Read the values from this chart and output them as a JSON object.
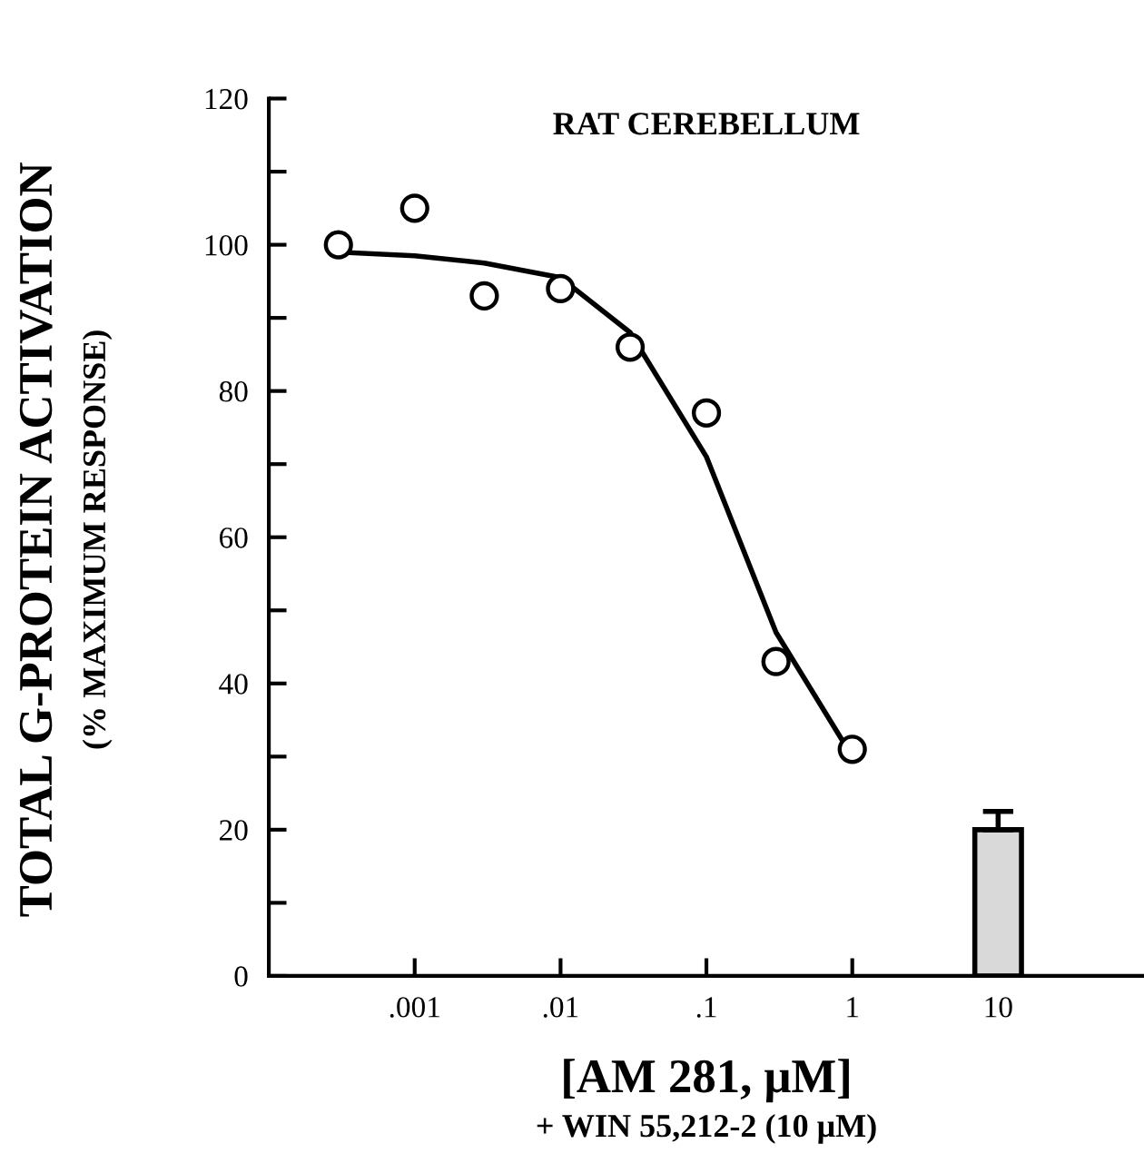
{
  "chart_data": {
    "type": "scatter",
    "title": "RAT CEREBELLUM",
    "xlabel": "[AM 281, μM]",
    "ylabel": "TOTAL G-PROTEIN ACTIVATION",
    "annotations": [
      "(% MAXIMUM RESPONSE)",
      "+ WIN 55,212-2 (10 μM)"
    ],
    "log": "x",
    "series": [
      {
        "color": "#000000",
        "marker": "circle",
        "x": [
          0.0003,
          0.001,
          0.003,
          0.01,
          0.03,
          0.1,
          0.3,
          1
        ],
        "values": [
          100,
          105,
          93,
          94,
          86,
          77,
          43,
          31
        ]
      },
      {
        "type": "line",
        "color": "#000000",
        "marker": "none",
        "line_style": "solid",
        "x": [
          0.0003,
          0.001,
          0.003,
          0.01,
          0.03,
          0.1,
          0.3,
          1
        ],
        "values": [
          99,
          98.5,
          97.5,
          95.5,
          88,
          71,
          47,
          30
        ]
      },
      {
        "type": "bar",
        "color": "#d9d9d9",
        "x": [
          10
        ],
        "values": [
          20
        ],
        "errors": [
          [
            20,
            22.5
          ]
        ]
      }
    ],
    "xlim": [
      0.0001,
      100
    ],
    "xticks": [
      {
        "value": 0.001,
        "label": ".001"
      },
      {
        "value": 0.01,
        "label": ".01"
      },
      {
        "value": 0.1,
        "label": ".1"
      },
      1,
      10
    ],
    "ylim": [
      0,
      120
    ],
    "yticks": [
      0,
      {
        "value": 10,
        "label": null
      },
      20,
      {
        "value": 30,
        "label": null
      },
      40,
      {
        "value": 50,
        "label": null
      },
      60,
      {
        "value": 70,
        "label": null
      },
      80,
      {
        "value": 90,
        "label": null
      },
      100,
      {
        "value": 110,
        "label": null
      },
      120
    ],
    "grid": false,
    "legend": false
  }
}
